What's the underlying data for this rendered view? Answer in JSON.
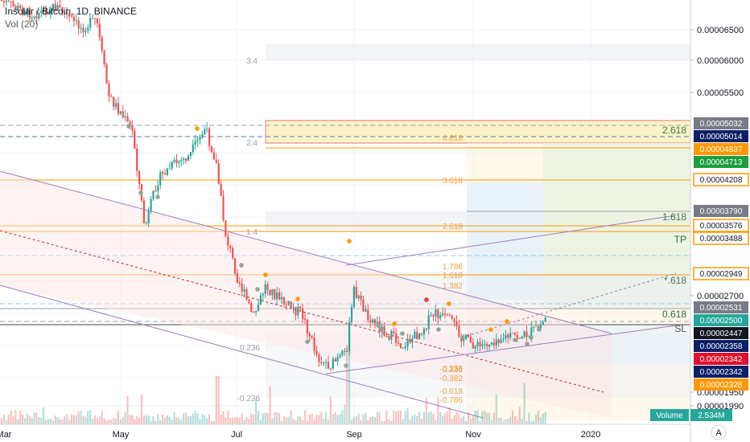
{
  "header": {
    "title": "Insolar / Bitcoin, 1D, BINANCE",
    "volume_label": "Vol (20)"
  },
  "colors": {
    "up": "#26a69a",
    "down": "#ef5350",
    "axis_text": "#131722",
    "channel": "#9c7bc1",
    "orange": "#ff9800",
    "green_tag": "#1b9e3e",
    "navy_tag": "#0b2066",
    "gray_tag": "#787b86",
    "red_tag": "#e0102c",
    "teal_tag": "#26a69a"
  },
  "chart_data": {
    "type": "candlestick",
    "title": "Insolar / Bitcoin, 1D, BINANCE",
    "x_axis": {
      "tick_labels": [
        "Mar",
        "May",
        "Jul",
        "Sep",
        "Nov",
        "2020"
      ],
      "range": [
        "2019-03-01",
        "2020-01-25"
      ]
    },
    "y_axis": {
      "position": "right",
      "tick_labels": [
        "0.00006500",
        "0.00006000",
        "0.00005500",
        "0.00002700",
        "0.00001990",
        "0.00001950"
      ],
      "tick_values": [
        6.5e-05,
        6e-05,
        5.5e-05,
        2.7e-05,
        1.99e-05,
        1.95e-05
      ]
    },
    "price_tags": [
      {
        "label": "0.00005032",
        "style": "gray"
      },
      {
        "label": "0.00005014",
        "style": "navy"
      },
      {
        "label": "0.00004837",
        "style": "orange"
      },
      {
        "label": "0.00004713",
        "style": "green"
      },
      {
        "label": "0.00004208",
        "style": "orange-outline"
      },
      {
        "label": "0.00003790",
        "style": "gray"
      },
      {
        "label": "0.00003576",
        "style": "orange-outline"
      },
      {
        "label": "0.00003488",
        "style": "orange-outline"
      },
      {
        "label": "0.00002949",
        "style": "orange-outline"
      },
      {
        "label": "0.00002531",
        "style": "gray"
      },
      {
        "label": "0.00002500",
        "style": "teal"
      },
      {
        "label": "0.00002447",
        "style": "black"
      },
      {
        "label": "0.00002358",
        "style": "navy"
      },
      {
        "label": "0.00002342",
        "style": "red"
      },
      {
        "label": "0.00002342",
        "style": "navy"
      },
      {
        "label": "0.00002328",
        "style": "orange"
      }
    ],
    "line_labels": [
      "2.618",
      "1.618",
      "TP",
      "*.618",
      "0.618",
      "SL"
    ],
    "fib_labels_left": [
      "3.4",
      "2.4",
      "1.4",
      "0.236",
      "-0.236"
    ],
    "fib_labels_right": [
      "4.618",
      "3.618",
      "2.618",
      "1.786",
      "1.618",
      "1.382",
      "0.236",
      "-0.236",
      "-0.382",
      "-0.618",
      "-0.786"
    ],
    "volume": {
      "label": "Volume",
      "value": "2.534M"
    },
    "scale_button": "A",
    "grid": true
  }
}
